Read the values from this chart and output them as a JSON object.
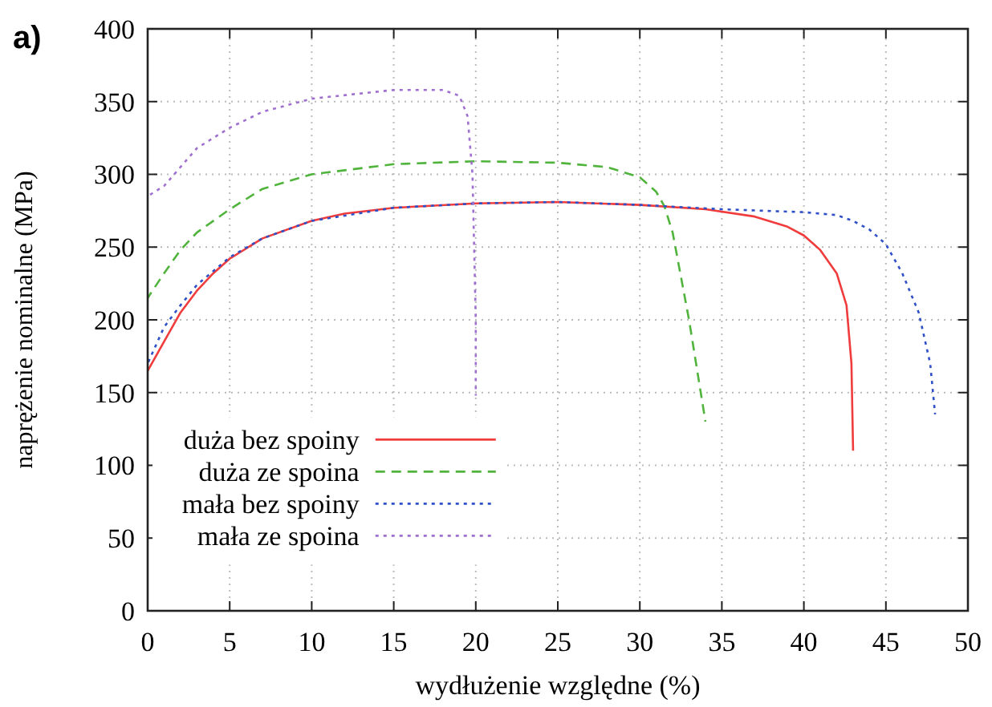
{
  "chart_data": {
    "type": "line",
    "title": "a)",
    "xlabel": "wydłużenie względne (%)",
    "ylabel": "naprężenie nominalne (MPa)",
    "xlim": [
      0,
      50
    ],
    "ylim": [
      0,
      400
    ],
    "xticks": [
      0,
      5,
      10,
      15,
      20,
      25,
      30,
      35,
      40,
      45,
      50
    ],
    "yticks": [
      0,
      50,
      100,
      150,
      200,
      250,
      300,
      350,
      400
    ],
    "grid": true,
    "legend": "bottom left",
    "marker": "none",
    "series": [
      {
        "name": "duża bez spoiny",
        "color": "#f03c3c",
        "line_style": "solid",
        "x": [
          0,
          1,
          2,
          3,
          4,
          5,
          7,
          10,
          12,
          15,
          20,
          25,
          30,
          34,
          37,
          39,
          40,
          41,
          42,
          42.6,
          42.9,
          43
        ],
        "values": [
          165,
          185,
          205,
          220,
          232,
          242,
          256,
          268,
          273,
          277,
          280,
          281,
          279,
          276,
          271,
          264,
          258,
          248,
          232,
          210,
          170,
          110
        ]
      },
      {
        "name": "duża ze spoina",
        "color": "#50b43c",
        "line_style": "dashed",
        "x": [
          0,
          1,
          2,
          3,
          5,
          7,
          10,
          15,
          20,
          25,
          28,
          30,
          31,
          31.5,
          32,
          32.5,
          33,
          33.5,
          34
        ],
        "values": [
          215,
          232,
          248,
          260,
          276,
          290,
          300,
          307,
          309,
          308,
          305,
          298,
          288,
          278,
          260,
          230,
          200,
          165,
          130
        ]
      },
      {
        "name": "mała bez spoiny",
        "color": "#3050c8",
        "line_style": "dotted",
        "x": [
          0,
          1,
          2,
          3,
          5,
          7,
          10,
          15,
          20,
          25,
          30,
          35,
          40,
          42,
          43,
          44,
          45,
          46,
          47,
          47.7,
          48
        ],
        "values": [
          170,
          195,
          210,
          224,
          243,
          256,
          268,
          277,
          280,
          281,
          279,
          276,
          274,
          272,
          268,
          262,
          252,
          232,
          205,
          170,
          135
        ]
      },
      {
        "name": "mała ze spoina",
        "color": "#a070d0",
        "line_style": "dotted",
        "x": [
          0,
          1,
          2,
          3,
          5,
          7,
          10,
          15,
          18,
          19,
          19.5,
          19.8,
          20,
          20
        ],
        "values": [
          285,
          292,
          305,
          318,
          332,
          343,
          352,
          358,
          358,
          354,
          340,
          300,
          200,
          148
        ]
      }
    ]
  }
}
